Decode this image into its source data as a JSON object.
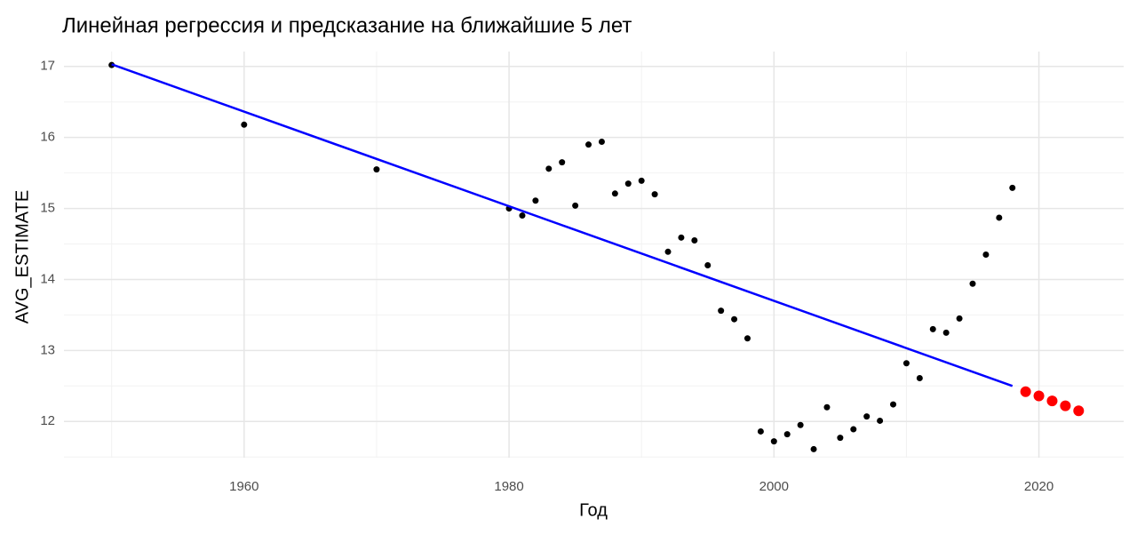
{
  "chart_data": {
    "type": "scatter",
    "title": "Линейная регрессия и предсказание на ближайшие 5 лет",
    "x_label": "Год",
    "y_label": "AVG_ESTIMATE",
    "xlim": [
      1946.4,
      2026.4
    ],
    "ylim": [
      11.49,
      17.21
    ],
    "xticks": [
      1960,
      1980,
      2000,
      2020
    ],
    "yticks": [
      12,
      13,
      14,
      15,
      16,
      17
    ],
    "minor_xticks": [
      1950,
      1970,
      1990,
      2010
    ],
    "minor_yticks": [
      11.5,
      12.5,
      13.5,
      14.5,
      15.5,
      16.5
    ],
    "grid": true,
    "series": [
      {
        "mode": "points",
        "color": "#000000",
        "x": [
          1950,
          1960,
          1970,
          1980,
          1981,
          1982,
          1983,
          1984,
          1985,
          1986,
          1987,
          1988,
          1989,
          1990,
          1991,
          1992,
          1993,
          1994,
          1995,
          1996,
          1997,
          1998,
          1999,
          2000,
          2001,
          2002,
          2003,
          2004,
          2005,
          2006,
          2007,
          2008,
          2009,
          2010,
          2011,
          2012,
          2013,
          2014,
          2015,
          2016,
          2017,
          2018
        ],
        "values": [
          17.02,
          16.18,
          15.55,
          15.0,
          14.9,
          15.11,
          15.56,
          15.65,
          15.04,
          15.9,
          15.94,
          15.21,
          15.35,
          15.39,
          15.2,
          14.39,
          14.59,
          14.55,
          14.2,
          13.56,
          13.44,
          13.17,
          11.86,
          11.72,
          11.82,
          11.95,
          11.61,
          12.2,
          11.77,
          11.89,
          12.07,
          12.01,
          12.24,
          12.82,
          12.61,
          13.3,
          13.25,
          13.45,
          13.94,
          14.35,
          14.87,
          15.29
        ]
      },
      {
        "mode": "line",
        "color": "#0000ff",
        "x": [
          1950,
          2018
        ],
        "values": [
          17.03,
          12.5
        ]
      },
      {
        "mode": "points",
        "color": "#ff0000",
        "size": "large",
        "x": [
          2019,
          2020,
          2021,
          2022,
          2023
        ],
        "values": [
          12.42,
          12.36,
          12.29,
          12.22,
          12.15
        ]
      }
    ]
  }
}
